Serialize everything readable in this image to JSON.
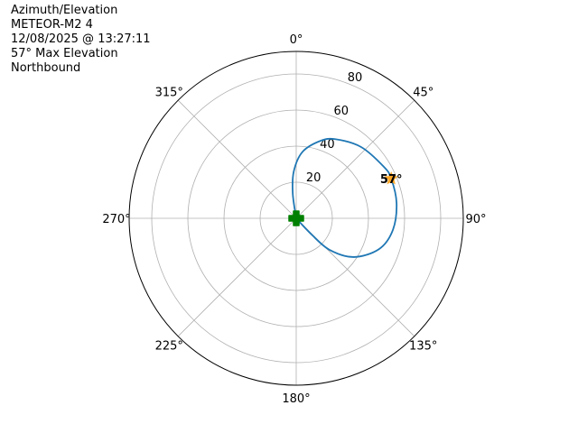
{
  "chart_data": {
    "type": "polar-line",
    "title_lines": [
      "Azimuth/Elevation",
      "METEOR-M2 4",
      "12/08/2025 @ 13:27:11",
      "57° Max Elevation",
      "Northbound"
    ],
    "theta_zero": "north",
    "theta_direction": "clockwise",
    "theta_tick_labels": [
      "0°",
      "45°",
      "90°",
      "135°",
      "180°",
      "225°",
      "270°",
      "315°"
    ],
    "theta_ticks": [
      0,
      45,
      90,
      135,
      180,
      225,
      270,
      315
    ],
    "r_ticks": [
      20,
      40,
      60,
      80
    ],
    "r_tick_labels": [
      "20",
      "40",
      "60",
      "80"
    ],
    "rlim": [
      0,
      92.5
    ],
    "grid": true,
    "series": [
      {
        "color": "#1f77b4",
        "points": [
          {
            "az": 0,
            "r": 0
          },
          {
            "az": 352,
            "r": 13.7
          },
          {
            "az": 357,
            "r": 26
          },
          {
            "az": 5.4,
            "r": 37
          },
          {
            "az": 17.4,
            "r": 45
          },
          {
            "az": 26.6,
            "r": 49
          },
          {
            "az": 42.3,
            "r": 53.4
          },
          {
            "az": 59.6,
            "r": 56.3
          },
          {
            "az": 67.3,
            "r": 57
          },
          {
            "az": 81.3,
            "r": 56.2
          },
          {
            "az": 96.9,
            "r": 53.9
          },
          {
            "az": 110.3,
            "r": 49
          },
          {
            "az": 123.9,
            "r": 38.5
          },
          {
            "az": 133.4,
            "r": 25.5
          },
          {
            "az": 136.6,
            "r": 12.4
          },
          {
            "az": 140,
            "r": 0
          }
        ]
      }
    ],
    "markers": {
      "start": {
        "az": 0,
        "r": 0,
        "color": "#008000",
        "shape": "plus-filled"
      },
      "max": {
        "az": 67.3,
        "r": 57,
        "color": "#ffa726",
        "shape": "star",
        "label": "57°"
      }
    }
  }
}
